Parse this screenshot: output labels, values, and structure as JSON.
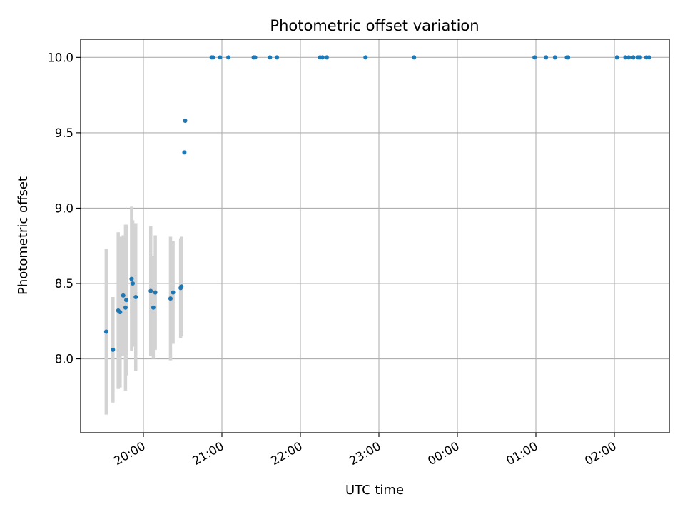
{
  "chart_data": {
    "type": "scatter",
    "title": "Photometric offset variation",
    "xlabel": "UTC time",
    "ylabel": "Photometric offset",
    "x_unit": "hours since 19:00 UTC",
    "xlim": [
      0.2,
      7.7
    ],
    "ylim": [
      7.51,
      10.12
    ],
    "x_ticks": [
      {
        "value": 1,
        "label": "20:00"
      },
      {
        "value": 2,
        "label": "21:00"
      },
      {
        "value": 3,
        "label": "22:00"
      },
      {
        "value": 4,
        "label": "23:00"
      },
      {
        "value": 5,
        "label": "00:00"
      },
      {
        "value": 6,
        "label": "01:00"
      },
      {
        "value": 7,
        "label": "02:00"
      }
    ],
    "y_ticks": [
      {
        "value": 8.0,
        "label": "8.0"
      },
      {
        "value": 8.5,
        "label": "8.5"
      },
      {
        "value": 9.0,
        "label": "9.0"
      },
      {
        "value": 9.5,
        "label": "9.5"
      },
      {
        "value": 10.0,
        "label": "10.0"
      }
    ],
    "grid": true,
    "colors": {
      "points": "#1f77b4",
      "errorbars": "#d3d3d3",
      "grid": "#b0b0b0",
      "axes": "#000000"
    },
    "series": [
      {
        "name": "",
        "points": [
          {
            "x": 0.526,
            "y": 8.18,
            "err": 0.55
          },
          {
            "x": 0.612,
            "y": 8.06,
            "err": 0.35
          },
          {
            "x": 0.679,
            "y": 8.32,
            "err": 0.52
          },
          {
            "x": 0.703,
            "y": 8.31,
            "err": 0.5
          },
          {
            "x": 0.743,
            "y": 8.42,
            "err": 0.4
          },
          {
            "x": 0.772,
            "y": 8.34,
            "err": 0.55
          },
          {
            "x": 0.782,
            "y": 8.39,
            "err": 0.5
          },
          {
            "x": 0.849,
            "y": 8.53,
            "err": 0.48
          },
          {
            "x": 0.864,
            "y": 8.5,
            "err": 0.42
          },
          {
            "x": 0.902,
            "y": 8.41,
            "err": 0.49
          },
          {
            "x": 1.093,
            "y": 8.45,
            "err": 0.43
          },
          {
            "x": 1.126,
            "y": 8.34,
            "err": 0.34
          },
          {
            "x": 1.151,
            "y": 8.44,
            "err": 0.38
          },
          {
            "x": 1.345,
            "y": 8.4,
            "err": 0.41
          },
          {
            "x": 1.378,
            "y": 8.44,
            "err": 0.34
          },
          {
            "x": 1.474,
            "y": 8.47,
            "err": 0.33
          },
          {
            "x": 1.484,
            "y": 8.48,
            "err": 0.33
          },
          {
            "x": 1.532,
            "y": 9.58
          },
          {
            "x": 1.522,
            "y": 9.37
          },
          {
            "x": 1.87,
            "y": 10.0
          },
          {
            "x": 1.888,
            "y": 10.0
          },
          {
            "x": 1.976,
            "y": 10.0
          },
          {
            "x": 2.083,
            "y": 10.0
          },
          {
            "x": 2.405,
            "y": 10.0
          },
          {
            "x": 2.423,
            "y": 10.0
          },
          {
            "x": 2.612,
            "y": 10.0
          },
          {
            "x": 2.7,
            "y": 10.0
          },
          {
            "x": 3.25,
            "y": 10.0
          },
          {
            "x": 3.281,
            "y": 10.0
          },
          {
            "x": 3.335,
            "y": 10.0
          },
          {
            "x": 3.83,
            "y": 10.0
          },
          {
            "x": 4.447,
            "y": 10.0
          },
          {
            "x": 5.983,
            "y": 10.0
          },
          {
            "x": 6.128,
            "y": 10.0
          },
          {
            "x": 6.245,
            "y": 10.0
          },
          {
            "x": 6.395,
            "y": 10.0
          },
          {
            "x": 6.41,
            "y": 10.0
          },
          {
            "x": 7.035,
            "y": 10.0
          },
          {
            "x": 7.141,
            "y": 10.0
          },
          {
            "x": 7.183,
            "y": 10.0
          },
          {
            "x": 7.241,
            "y": 10.0
          },
          {
            "x": 7.3,
            "y": 10.0
          },
          {
            "x": 7.326,
            "y": 10.0
          },
          {
            "x": 7.408,
            "y": 10.0
          },
          {
            "x": 7.442,
            "y": 10.0
          }
        ]
      }
    ]
  }
}
